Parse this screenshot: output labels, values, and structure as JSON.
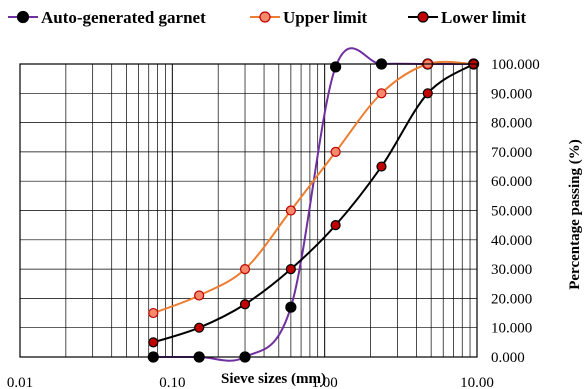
{
  "chart_data": {
    "type": "line",
    "xscale": "log",
    "xlim": [
      0.01,
      10
    ],
    "ylim": [
      0,
      100
    ],
    "xlabel": "Sieve sizes (mm)",
    "ylabel": "Percentage passing (%)",
    "x_tick_values": [
      0.01,
      0.1,
      1,
      10
    ],
    "x_tick_labels": [
      "0.01",
      "0.10",
      "1.00",
      "10.00"
    ],
    "y_tick_values": [
      0,
      10,
      20,
      30,
      40,
      50,
      60,
      70,
      80,
      90,
      100
    ],
    "y_tick_labels": [
      "0.000",
      "10.000",
      "20.000",
      "30.000",
      "40.000",
      "50.000",
      "60.000",
      "70.000",
      "80.000",
      "90.000",
      "100.000"
    ],
    "y_axis_side": "right",
    "grid": true,
    "legend_position": "top",
    "series": [
      {
        "name": "Auto-generated garnet",
        "color": "#7030a0",
        "marker_fill": "#000000",
        "marker_edge": "#000000",
        "points": [
          [
            0.075,
            0
          ],
          [
            0.15,
            0
          ],
          [
            0.3,
            0
          ],
          [
            0.6,
            17
          ],
          [
            1.18,
            99
          ],
          [
            2.36,
            100
          ],
          [
            4.75,
            100
          ],
          [
            9.5,
            100
          ]
        ]
      },
      {
        "name": "Upper limit",
        "color": "#ed7d31",
        "marker_fill": "#f4896b",
        "marker_edge": "#c00000",
        "points": [
          [
            0.075,
            15
          ],
          [
            0.15,
            21
          ],
          [
            0.3,
            30
          ],
          [
            0.6,
            50
          ],
          [
            1.18,
            70
          ],
          [
            2.36,
            90
          ],
          [
            4.75,
            100
          ],
          [
            9.5,
            100
          ]
        ]
      },
      {
        "name": "Lower limit",
        "color": "#000000",
        "marker_fill": "#c00000",
        "marker_edge": "#000000",
        "points": [
          [
            0.075,
            5
          ],
          [
            0.15,
            10
          ],
          [
            0.3,
            18
          ],
          [
            0.6,
            30
          ],
          [
            1.18,
            45
          ],
          [
            2.36,
            65
          ],
          [
            4.75,
            90
          ],
          [
            9.5,
            100
          ]
        ]
      }
    ]
  }
}
